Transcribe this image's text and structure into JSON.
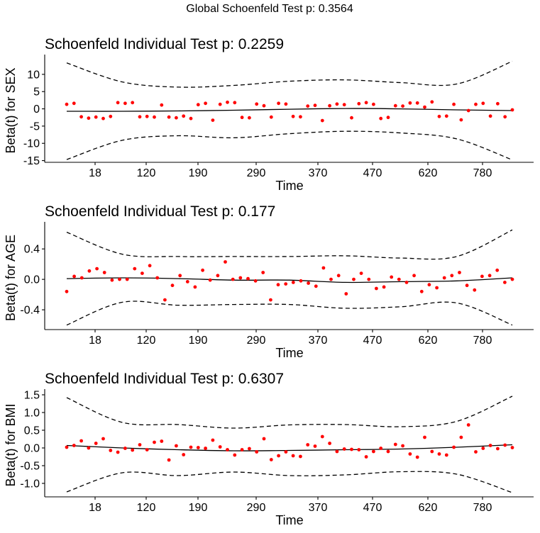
{
  "global_title": "Global Schoenfeld Test p: 0.3564",
  "chart_data": [
    {
      "type": "scatter",
      "title": "Schoenfeld Individual Test p: 0.2259",
      "xlabel": "Time",
      "ylabel": "Beta(t) for SEX",
      "x_tick_labels": [
        "18",
        "120",
        "190",
        "290",
        "370",
        "470",
        "620",
        "780"
      ],
      "y_ticks": [
        10,
        5,
        0,
        -5,
        -10,
        -15
      ],
      "y_tick_labels": [
        "10",
        "5",
        "0",
        "-5",
        "-10",
        "-15"
      ],
      "ylim": [
        -15.5,
        14.5
      ],
      "point_color": "#ff0000",
      "points": [
        1.3,
        1.6,
        -2.3,
        -2.7,
        -2.4,
        -2.8,
        -2.2,
        1.8,
        1.6,
        1.8,
        -2.3,
        -2.2,
        -2.4,
        1.1,
        -2.4,
        -2.6,
        -2.1,
        -2.8,
        1.2,
        1.6,
        -3.3,
        1.3,
        1.9,
        1.8,
        -2.5,
        -2.6,
        1.4,
        0.9,
        -2.4,
        1.6,
        1.4,
        -2.2,
        -2.3,
        0.8,
        1.0,
        -3.4,
        0.9,
        1.4,
        1.2,
        -2.6,
        1.5,
        1.8,
        1.3,
        -2.8,
        -2.5,
        0.9,
        0.8,
        1.7,
        1.7,
        0.5,
        2.0,
        -2.2,
        -2.1,
        1.3,
        -3.2,
        -0.5,
        1.3,
        1.6,
        -2.1,
        1.5,
        -2.3,
        -0.3
      ],
      "fit": [
        -0.7,
        -0.7,
        -0.6,
        -0.4,
        -0.1,
        0.1,
        0.0,
        -0.3,
        -0.5
      ],
      "upper": [
        13.3,
        7.8,
        6.3,
        6.8,
        8.0,
        8.4,
        7.6,
        7.2,
        13.8
      ],
      "lower": [
        -14.7,
        -9.1,
        -7.8,
        -8.4,
        -7.2,
        -6.5,
        -7.0,
        -8.7,
        -14.8
      ]
    },
    {
      "type": "scatter",
      "title": "Schoenfeld Individual Test p: 0.177",
      "xlabel": "Time",
      "ylabel": "Beta(t) for AGE",
      "x_tick_labels": [
        "18",
        "120",
        "190",
        "290",
        "370",
        "470",
        "620",
        "780"
      ],
      "y_ticks": [
        0.4,
        0.0,
        -0.4
      ],
      "y_tick_labels": [
        "0.4",
        "0.0",
        "-0.4"
      ],
      "ylim": [
        -0.66,
        0.7
      ],
      "point_color": "#ff0000",
      "points": [
        -0.16,
        0.04,
        0.02,
        0.11,
        0.14,
        0.09,
        -0.01,
        0.0,
        0.0,
        0.14,
        0.08,
        0.18,
        0.02,
        -0.27,
        -0.08,
        0.05,
        -0.03,
        -0.1,
        0.12,
        -0.01,
        0.05,
        0.23,
        0.0,
        0.02,
        0.01,
        -0.02,
        0.09,
        -0.27,
        -0.07,
        -0.06,
        -0.04,
        -0.02,
        -0.05,
        -0.09,
        0.15,
        0.0,
        0.05,
        -0.19,
        0.0,
        0.08,
        0.0,
        -0.12,
        -0.1,
        0.03,
        0.0,
        -0.04,
        0.05,
        -0.16,
        -0.07,
        -0.11,
        0.02,
        0.05,
        0.09,
        -0.08,
        -0.14,
        0.04,
        0.05,
        0.12,
        -0.04,
        0.0
      ],
      "fit": [
        0.01,
        0.02,
        0.01,
        -0.01,
        -0.01,
        -0.04,
        -0.03,
        -0.02,
        0.02
      ],
      "upper": [
        0.62,
        0.33,
        0.3,
        0.3,
        0.3,
        0.31,
        0.28,
        0.3,
        0.65
      ],
      "lower": [
        -0.6,
        -0.3,
        -0.34,
        -0.33,
        -0.33,
        -0.38,
        -0.36,
        -0.31,
        -0.6
      ]
    },
    {
      "type": "scatter",
      "title": "Schoenfeld Individual Test p: 0.6307",
      "xlabel": "Time",
      "ylabel": "Beta(t) for BMI",
      "x_tick_labels": [
        "18",
        "120",
        "190",
        "290",
        "370",
        "470",
        "620",
        "780"
      ],
      "y_ticks": [
        1.5,
        1.0,
        0.5,
        0.0,
        -0.5,
        -1.0
      ],
      "y_tick_labels": [
        "1.5",
        "1.0",
        "0.5",
        "0.0",
        "-0.5",
        "-1.0"
      ],
      "ylim": [
        -1.38,
        1.54
      ],
      "point_color": "#ff0000",
      "points": [
        0.02,
        0.07,
        0.2,
        0.0,
        0.13,
        0.26,
        -0.07,
        -0.12,
        -0.01,
        -0.06,
        0.09,
        -0.05,
        0.16,
        0.19,
        -0.34,
        0.06,
        -0.19,
        0.02,
        0.01,
        -0.01,
        0.22,
        0.03,
        -0.05,
        -0.2,
        -0.05,
        -0.02,
        -0.11,
        0.26,
        -0.33,
        -0.22,
        -0.11,
        -0.22,
        -0.24,
        0.09,
        0.05,
        0.32,
        0.13,
        -0.1,
        -0.03,
        -0.04,
        -0.05,
        -0.25,
        -0.1,
        -0.01,
        -0.1,
        0.1,
        0.06,
        -0.17,
        -0.26,
        0.3,
        -0.1,
        -0.17,
        -0.2,
        0.02,
        0.3,
        0.65,
        -0.11,
        -0.01,
        0.07,
        -0.02,
        0.08,
        0.01
      ],
      "fit": [
        0.07,
        0.0,
        -0.05,
        -0.08,
        -0.07,
        -0.05,
        -0.03,
        0.02,
        0.09
      ],
      "upper": [
        1.42,
        0.72,
        0.66,
        0.56,
        0.65,
        0.66,
        0.6,
        0.75,
        1.46
      ],
      "lower": [
        -1.24,
        -0.7,
        -0.78,
        -0.68,
        -0.78,
        -0.76,
        -0.67,
        -0.74,
        -1.26
      ]
    }
  ]
}
